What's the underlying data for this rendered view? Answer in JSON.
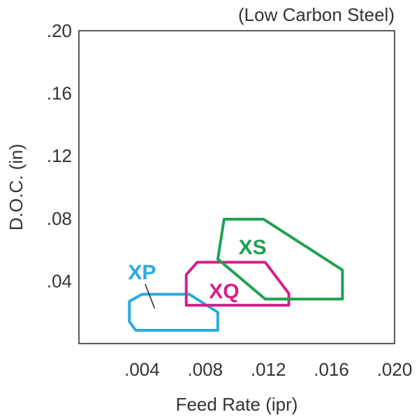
{
  "chart_data": {
    "type": "region",
    "title": "(Low Carbon Steel)",
    "xlabel": "Feed Rate (ipr)",
    "ylabel": "D.O.C. (in)",
    "xlim": [
      0,
      0.02
    ],
    "ylim": [
      0,
      0.2
    ],
    "xticks": [
      ".004",
      ".008",
      ".012",
      ".016",
      ".020"
    ],
    "yticks": [
      ".04",
      ".08",
      ".12",
      ".16",
      ".20"
    ],
    "grid": false,
    "regions": [
      {
        "name": "XP",
        "color": "#29abe2",
        "polygon": [
          [
            0.004,
            0.0315
          ],
          [
            0.007,
            0.0315
          ],
          [
            0.0088,
            0.02
          ],
          [
            0.0088,
            0.0085
          ],
          [
            0.0036,
            0.0085
          ],
          [
            0.0032,
            0.014
          ],
          [
            0.0032,
            0.027
          ]
        ],
        "label_at": [
          0.004,
          0.046
        ],
        "leader": [
          [
            0.0042,
            0.038
          ],
          [
            0.0048,
            0.0225
          ]
        ]
      },
      {
        "name": "XQ",
        "color": "#d4208a",
        "polygon": [
          [
            0.0075,
            0.052
          ],
          [
            0.0118,
            0.052
          ],
          [
            0.0133,
            0.032
          ],
          [
            0.0133,
            0.0245
          ],
          [
            0.0068,
            0.0245
          ],
          [
            0.0068,
            0.044
          ]
        ],
        "label_at": [
          0.0092,
          0.034
        ]
      },
      {
        "name": "XS",
        "color": "#1fa150",
        "polygon": [
          [
            0.0092,
            0.0795
          ],
          [
            0.0117,
            0.0795
          ],
          [
            0.0167,
            0.047
          ],
          [
            0.0167,
            0.0285
          ],
          [
            0.0118,
            0.0285
          ],
          [
            0.0088,
            0.054
          ]
        ],
        "label_at": [
          0.011,
          0.062
        ]
      }
    ]
  }
}
